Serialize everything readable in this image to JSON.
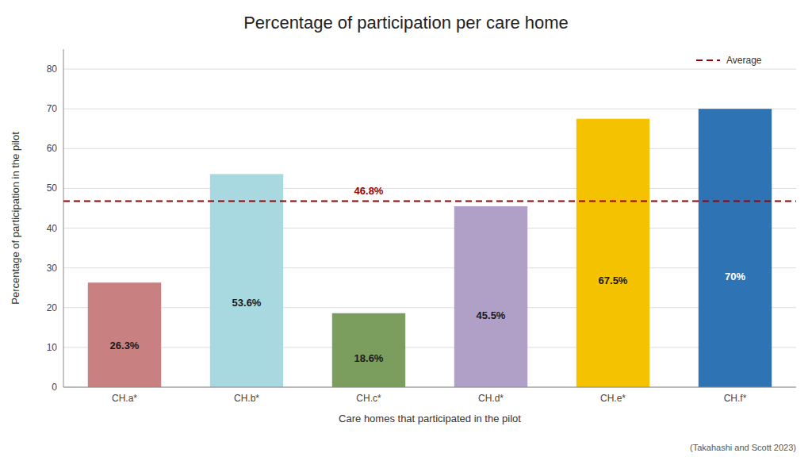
{
  "chart_data": {
    "type": "bar",
    "title": "Percentage of participation per care home",
    "xlabel": "Care homes that participated in the pilot",
    "ylabel": "Percentage of participation in the pilot",
    "categories": [
      "CH.a*",
      "CH.b*",
      "CH.c*",
      "CH.d*",
      "CH.e*",
      "CH.f*"
    ],
    "values": [
      26.3,
      53.6,
      18.6,
      45.5,
      67.5,
      70.0
    ],
    "value_labels": [
      "26.3%",
      "53.6%",
      "18.6%",
      "45.5%",
      "67.5%",
      "70%"
    ],
    "colors": [
      "#C98080",
      "#A8D8E0",
      "#7B9E5E",
      "#B0A0C8",
      "#F5C200",
      "#2E74B5"
    ],
    "data_labels": true,
    "average": {
      "name": "Average",
      "value": 46.8,
      "value_label": "46.8%",
      "color": "#9B0000",
      "line_style": "dashed"
    },
    "ylim": [
      0,
      85
    ],
    "yticks": [
      0,
      10,
      20,
      30,
      40,
      50,
      60,
      70,
      80
    ],
    "grid": true,
    "legend": "upper right",
    "annotation": "(Takahashi and Scott 2023)"
  }
}
